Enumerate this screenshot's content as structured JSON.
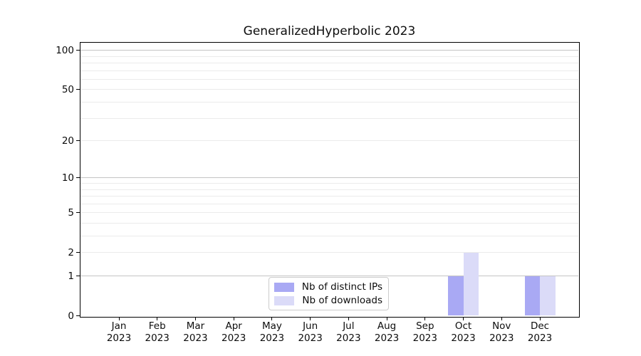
{
  "chart_data": {
    "type": "bar",
    "title": "GeneralizedHyperbolic 2023",
    "categories": [
      {
        "month": "Jan",
        "year": "2023"
      },
      {
        "month": "Feb",
        "year": "2023"
      },
      {
        "month": "Mar",
        "year": "2023"
      },
      {
        "month": "Apr",
        "year": "2023"
      },
      {
        "month": "May",
        "year": "2023"
      },
      {
        "month": "Jun",
        "year": "2023"
      },
      {
        "month": "Jul",
        "year": "2023"
      },
      {
        "month": "Aug",
        "year": "2023"
      },
      {
        "month": "Sep",
        "year": "2023"
      },
      {
        "month": "Oct",
        "year": "2023"
      },
      {
        "month": "Nov",
        "year": "2023"
      },
      {
        "month": "Dec",
        "year": "2023"
      }
    ],
    "series": [
      {
        "name": "Nb of distinct IPs",
        "color": "#a9a9f4",
        "values": [
          0,
          0,
          0,
          0,
          0,
          0,
          0,
          0,
          0,
          1,
          0,
          1
        ]
      },
      {
        "name": "Nb of downloads",
        "color": "#dbdbf8",
        "values": [
          0,
          0,
          0,
          0,
          0,
          0,
          0,
          0,
          0,
          2,
          0,
          1
        ]
      }
    ],
    "xlabel": "",
    "ylabel": "",
    "yscale": "log(1+y)",
    "ylim": [
      0,
      115
    ],
    "y_tick_labels": [
      0,
      1,
      2,
      5,
      10,
      20,
      50,
      100
    ],
    "grid": true,
    "grid_major_values": [
      1,
      10,
      100
    ],
    "grid_minor_values": [
      2,
      3,
      4,
      5,
      6,
      7,
      8,
      9,
      20,
      30,
      40,
      50,
      60,
      70,
      80,
      90
    ],
    "legend_position": "lower center inside",
    "colors": {
      "grid_major": "#c4c4c4",
      "grid_minor": "#ebebeb",
      "spine": "#000000"
    }
  }
}
